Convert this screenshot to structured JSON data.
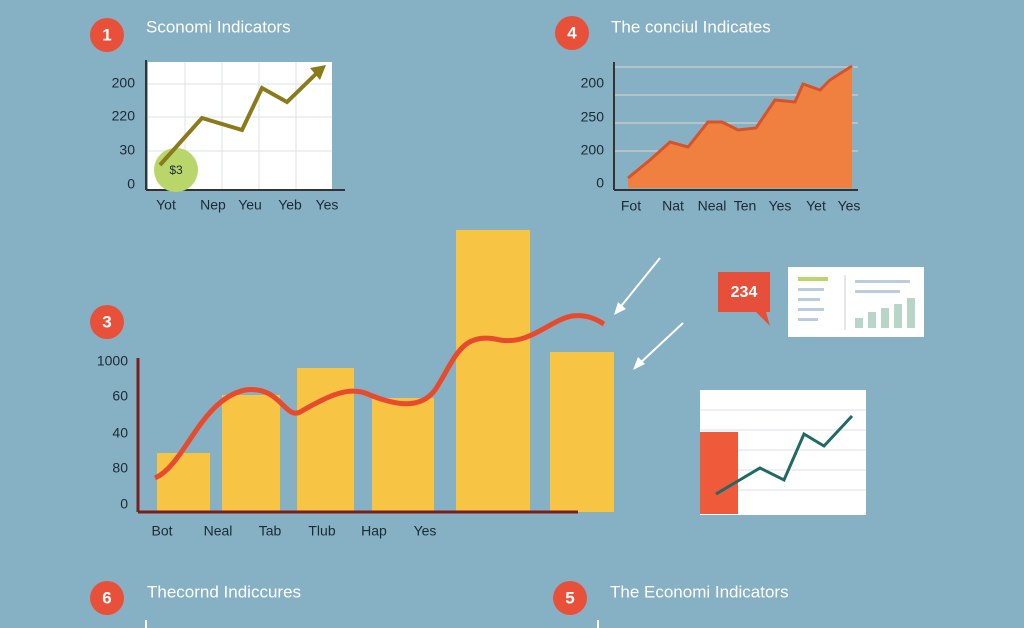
{
  "panels": [
    {
      "badge": "1",
      "title": "Sconomi Indicators",
      "y_labels": [
        "200",
        "220",
        "30",
        "0"
      ],
      "x_labels": [
        "Yot",
        "Nep",
        "Yeu",
        "Yeb",
        "Yes"
      ],
      "marker": "$3"
    },
    {
      "badge": "4",
      "title": "The conciul Indicates",
      "y_labels": [
        "200",
        "250",
        "200",
        "0"
      ],
      "x_labels": [
        "Fot",
        "Nat",
        "Neal",
        "Ten",
        "Yes",
        "Yet",
        "Yes"
      ]
    },
    {
      "badge": "3",
      "y_labels": [
        "1000",
        "60",
        "40",
        "80",
        "0"
      ],
      "x_labels": [
        "Bot",
        "Neal",
        "Tab",
        "Tlub",
        "Hap",
        "Yes"
      ]
    },
    {
      "badge": "6",
      "title": "Thecornd Indiccures"
    },
    {
      "badge": "5",
      "title": "The Economi Indicators"
    }
  ],
  "callout": "234"
}
